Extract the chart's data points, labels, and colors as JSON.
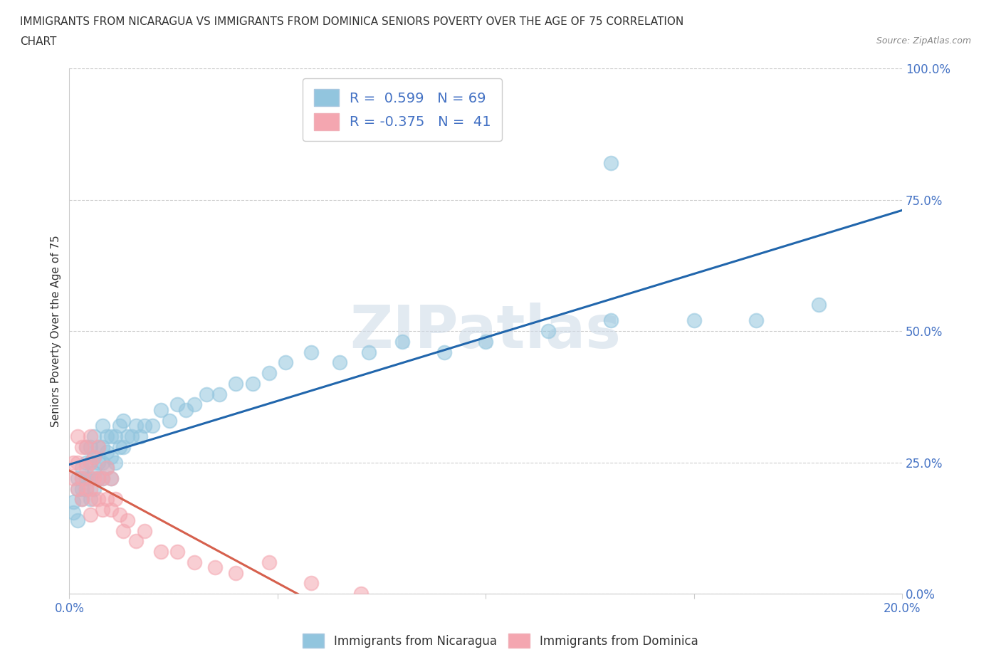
{
  "title_line1": "IMMIGRANTS FROM NICARAGUA VS IMMIGRANTS FROM DOMINICA SENIORS POVERTY OVER THE AGE OF 75 CORRELATION",
  "title_line2": "CHART",
  "source": "Source: ZipAtlas.com",
  "ylabel": "Seniors Poverty Over the Age of 75",
  "xmin": 0.0,
  "xmax": 0.2,
  "ymin": 0.0,
  "ymax": 1.0,
  "yticks": [
    0.0,
    0.25,
    0.5,
    0.75,
    1.0
  ],
  "ytick_labels": [
    "0.0%",
    "25.0%",
    "50.0%",
    "75.0%",
    "100.0%"
  ],
  "xticks": [
    0.0,
    0.05,
    0.1,
    0.15,
    0.2
  ],
  "xtick_labels": [
    "0.0%",
    "",
    "",
    "",
    "20.0%"
  ],
  "nicaragua_R": 0.599,
  "nicaragua_N": 69,
  "dominica_R": -0.375,
  "dominica_N": 41,
  "nicaragua_color": "#92c5de",
  "dominica_color": "#f4a6b0",
  "trendline_nicaragua_color": "#2166ac",
  "trendline_dominica_color": "#d6604d",
  "watermark": "ZIPatlas",
  "nicaragua_x": [
    0.001,
    0.001,
    0.002,
    0.002,
    0.002,
    0.003,
    0.003,
    0.003,
    0.003,
    0.004,
    0.004,
    0.004,
    0.004,
    0.005,
    0.005,
    0.005,
    0.005,
    0.006,
    0.006,
    0.006,
    0.006,
    0.007,
    0.007,
    0.007,
    0.008,
    0.008,
    0.008,
    0.008,
    0.009,
    0.009,
    0.009,
    0.01,
    0.01,
    0.01,
    0.011,
    0.011,
    0.012,
    0.012,
    0.013,
    0.013,
    0.014,
    0.015,
    0.016,
    0.017,
    0.018,
    0.02,
    0.022,
    0.024,
    0.026,
    0.028,
    0.03,
    0.033,
    0.036,
    0.04,
    0.044,
    0.048,
    0.052,
    0.058,
    0.065,
    0.072,
    0.08,
    0.09,
    0.1,
    0.115,
    0.13,
    0.15,
    0.165,
    0.18,
    0.13
  ],
  "nicaragua_y": [
    0.155,
    0.175,
    0.14,
    0.2,
    0.22,
    0.18,
    0.2,
    0.24,
    0.22,
    0.2,
    0.22,
    0.25,
    0.28,
    0.18,
    0.22,
    0.25,
    0.28,
    0.2,
    0.23,
    0.26,
    0.3,
    0.22,
    0.25,
    0.28,
    0.22,
    0.25,
    0.28,
    0.32,
    0.24,
    0.27,
    0.3,
    0.22,
    0.26,
    0.3,
    0.25,
    0.3,
    0.28,
    0.32,
    0.28,
    0.33,
    0.3,
    0.3,
    0.32,
    0.3,
    0.32,
    0.32,
    0.35,
    0.33,
    0.36,
    0.35,
    0.36,
    0.38,
    0.38,
    0.4,
    0.4,
    0.42,
    0.44,
    0.46,
    0.44,
    0.46,
    0.48,
    0.46,
    0.48,
    0.5,
    0.52,
    0.52,
    0.52,
    0.55,
    0.82
  ],
  "dominica_x": [
    0.001,
    0.001,
    0.002,
    0.002,
    0.002,
    0.003,
    0.003,
    0.003,
    0.004,
    0.004,
    0.004,
    0.005,
    0.005,
    0.005,
    0.005,
    0.006,
    0.006,
    0.006,
    0.007,
    0.007,
    0.007,
    0.008,
    0.008,
    0.009,
    0.009,
    0.01,
    0.01,
    0.011,
    0.012,
    0.013,
    0.014,
    0.016,
    0.018,
    0.022,
    0.026,
    0.03,
    0.035,
    0.04,
    0.048,
    0.058,
    0.07
  ],
  "dominica_y": [
    0.22,
    0.25,
    0.2,
    0.25,
    0.3,
    0.18,
    0.22,
    0.28,
    0.2,
    0.24,
    0.28,
    0.15,
    0.2,
    0.25,
    0.3,
    0.18,
    0.22,
    0.26,
    0.18,
    0.22,
    0.28,
    0.16,
    0.22,
    0.18,
    0.24,
    0.16,
    0.22,
    0.18,
    0.15,
    0.12,
    0.14,
    0.1,
    0.12,
    0.08,
    0.08,
    0.06,
    0.05,
    0.04,
    0.06,
    0.02,
    0.0
  ]
}
